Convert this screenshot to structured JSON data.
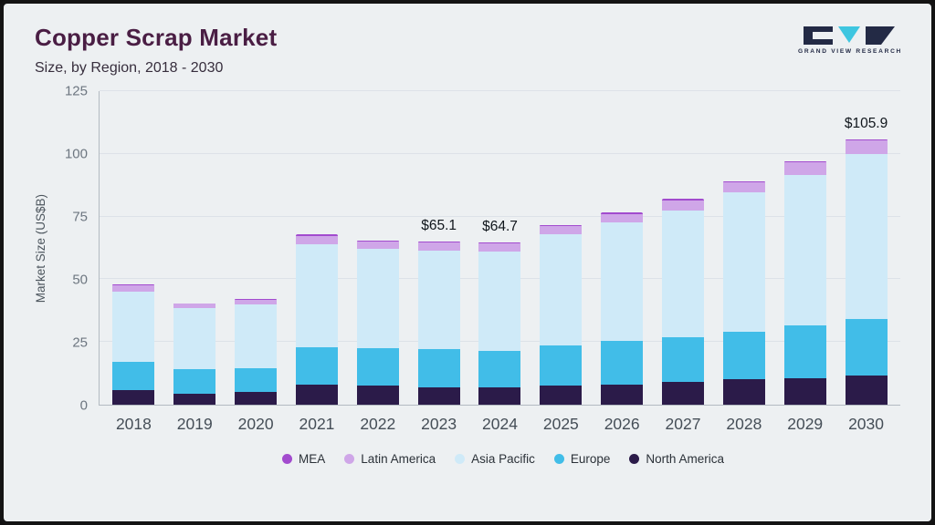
{
  "header": {
    "title": "Copper Scrap Market",
    "subtitle": "Size, by Region, 2018 - 2030",
    "logo_text": "GRAND VIEW RESEARCH"
  },
  "chart_data": {
    "type": "bar",
    "stacked": true,
    "title": "Copper Scrap Market Size, by Region, 2018 - 2030",
    "xlabel": "",
    "ylabel": "Market Size (US$B)",
    "ylim": [
      0,
      125
    ],
    "yticks": [
      0,
      25,
      50,
      75,
      100,
      125
    ],
    "grid": true,
    "legend_position": "bottom",
    "categories": [
      "2018",
      "2019",
      "2020",
      "2021",
      "2022",
      "2023",
      "2024",
      "2025",
      "2026",
      "2027",
      "2028",
      "2029",
      "2030"
    ],
    "series": [
      {
        "name": "North America",
        "color": "#2b1b49",
        "values": [
          6,
          4.5,
          5,
          8,
          7.5,
          7,
          7,
          7.5,
          8,
          9,
          10,
          10.5,
          11.5
        ]
      },
      {
        "name": "Europe",
        "color": "#41bde8",
        "values": [
          11,
          9.5,
          9.5,
          15,
          15,
          15,
          14.5,
          16,
          17.5,
          18,
          19,
          21,
          22.5
        ]
      },
      {
        "name": "Asia Pacific",
        "color": "#cfeaf8",
        "values": [
          28,
          24.5,
          25.5,
          41,
          39.5,
          39.6,
          39.7,
          44.5,
          47,
          50.5,
          55.5,
          60,
          66
        ]
      },
      {
        "name": "Latin America",
        "color": "#cfa6e8",
        "values": [
          2.5,
          1.7,
          1.8,
          3.2,
          3,
          3,
          3,
          3.2,
          3.5,
          4,
          4,
          5,
          5.4
        ]
      },
      {
        "name": "MEA",
        "color": "#a24bce",
        "values": [
          0.5,
          0.3,
          0.3,
          0.6,
          0.5,
          0.5,
          0.5,
          0.5,
          0.5,
          0.5,
          0.5,
          0.5,
          0.5
        ]
      }
    ],
    "totals": [
      48,
      40.5,
      42.1,
      67.8,
      65.5,
      65.1,
      64.7,
      71.7,
      76.5,
      82,
      89,
      97,
      105.9
    ],
    "annotations": {
      "2023": "$65.1",
      "2024": "$64.7",
      "2030": "$105.9"
    },
    "legend_order": [
      "MEA",
      "Latin America",
      "Asia Pacific",
      "Europe",
      "North America"
    ]
  },
  "colors": {
    "background": "#edf0f2",
    "frame": "#141414",
    "title": "#4a1e44",
    "axis_text": "#6d7680",
    "logo_dark": "#232a45",
    "logo_teal": "#3ec6e0"
  }
}
